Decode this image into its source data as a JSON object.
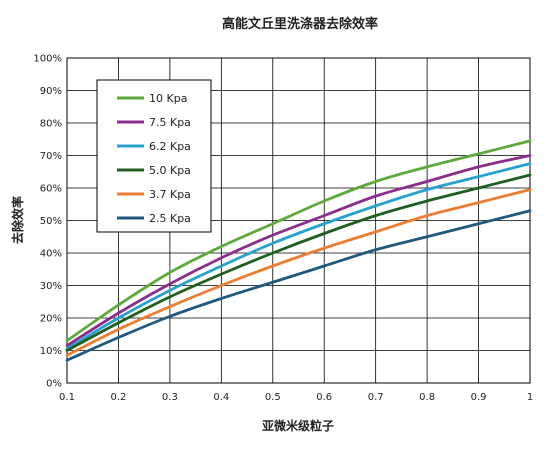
{
  "chart_data": {
    "type": "line",
    "title": "高能文丘里洗涤器去除效率",
    "xlabel": "亚微米级粒子",
    "ylabel": "去除效率",
    "xlim": [
      0.1,
      1.0
    ],
    "ylim": [
      0,
      100
    ],
    "grid": true,
    "legend_position": "top-left",
    "x": [
      0.1,
      0.2,
      0.3,
      0.4,
      0.5,
      0.6,
      0.7,
      0.8,
      0.9,
      1.0
    ],
    "x_ticks": [
      "0.1",
      "0.2",
      "0.3",
      "0.4",
      "0.5",
      "0.6",
      "0.7",
      "0.8",
      "0.9",
      "1"
    ],
    "y_ticks": [
      "0%",
      "10%",
      "20%",
      "30%",
      "40%",
      "50%",
      "60%",
      "70%",
      "80%",
      "90%",
      "100%"
    ],
    "series": [
      {
        "name": "10  Kpa",
        "color": "#5daa3a",
        "values": [
          13,
          24,
          34,
          42,
          49,
          56,
          62,
          66.5,
          70.5,
          74.5
        ]
      },
      {
        "name": "7.5 Kpa",
        "color": "#8b2c8e",
        "values": [
          11.5,
          21.5,
          30.5,
          38.5,
          45.5,
          51.5,
          57.5,
          62,
          66.5,
          70
        ]
      },
      {
        "name": "6.2 Kpa",
        "color": "#27a1cf",
        "values": [
          10.5,
          20,
          28.5,
          36,
          43,
          49,
          54.5,
          59.5,
          63.5,
          67.5
        ]
      },
      {
        "name": "5.0 Kpa",
        "color": "#1f5f1f",
        "values": [
          10,
          18.5,
          26.5,
          33.5,
          40,
          46,
          51.5,
          56,
          60,
          64
        ]
      },
      {
        "name": "3.7 Kpa",
        "color": "#ee7d32",
        "values": [
          8.5,
          16.5,
          23.5,
          30,
          36,
          41.5,
          46.5,
          51.5,
          55.5,
          59.5
        ]
      },
      {
        "name": "2.5 Kpa",
        "color": "#1f5a7e",
        "values": [
          7,
          14,
          20.5,
          26,
          31,
          36,
          41,
          45,
          49,
          53
        ]
      }
    ]
  }
}
